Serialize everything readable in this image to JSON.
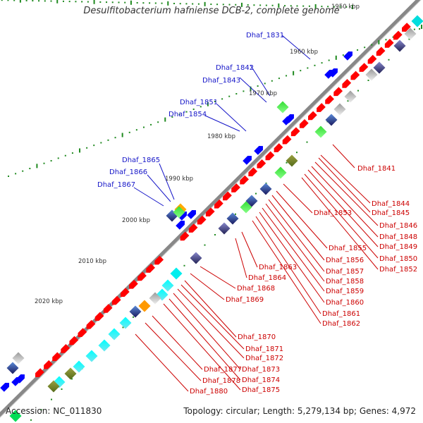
{
  "title": "Desulfitobacterium hafniense DCB-2, complete genome",
  "footer": {
    "accession": "Accession: NC_011830",
    "summary": "Topology: circular; Length: 5,279,134 bp; Genes: 4,972"
  },
  "ticks": [
    "1950 kbp",
    "1960 kbp",
    "1970 kbp",
    "1980 kbp",
    "1990 kbp",
    "2000 kbp",
    "2010 kbp",
    "2020 kbp"
  ],
  "labels_outer": [
    "Dhaf_1831",
    "Dhaf_1842",
    "Dhaf_1843",
    "Dhaf_1851",
    "Dhaf_1854",
    "Dhaf_1865",
    "Dhaf_1866",
    "Dhaf_1867"
  ],
  "labels_inner": [
    "Dhaf_1841",
    "Dhaf_1844",
    "Dhaf_1845",
    "Dhaf_1846",
    "Dhaf_1848",
    "Dhaf_1849",
    "Dhaf_1850",
    "Dhaf_1852",
    "Dhaf_1853",
    "Dhaf_1855",
    "Dhaf_1856",
    "Dhaf_1857",
    "Dhaf_1858",
    "Dhaf_1859",
    "Dhaf_1860",
    "Dhaf_1861",
    "Dhaf_1862",
    "Dhaf_1863",
    "Dhaf_1864",
    "Dhaf_1868",
    "Dhaf_1869",
    "Dhaf_1870",
    "Dhaf_1871",
    "Dhaf_1872",
    "Dhaf_1873",
    "Dhaf_1874",
    "Dhaf_1875",
    "Dhaf_1877",
    "Dhaf_1878",
    "Dhaf_1880"
  ],
  "colors": {
    "backbone": "#7a7a7a",
    "forward_cds": "#ff0000",
    "reverse_cds": "#0000ff",
    "tick_dots": "#1f8a1f",
    "outer_label": "#1515c8",
    "inner_label": "#cc0000"
  }
}
